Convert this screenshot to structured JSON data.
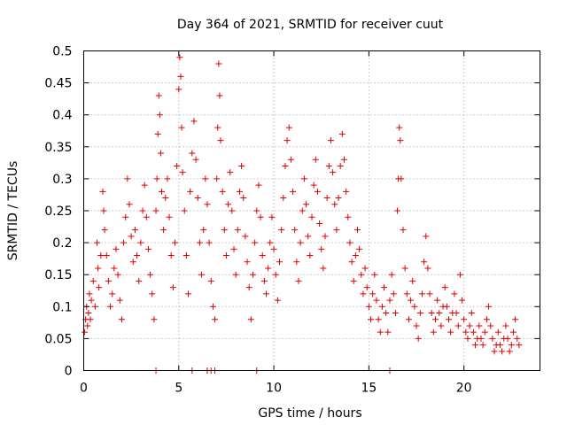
{
  "chart_data": {
    "type": "scatter",
    "title": "Day 364 of 2021, SRMTID for receiver cuut",
    "xlabel": "GPS time / hours",
    "ylabel": "SRMTID / TECUs",
    "xlim": [
      0,
      24
    ],
    "ylim": [
      0,
      0.5
    ],
    "xticks": [
      0,
      5,
      10,
      15,
      20
    ],
    "xtick_labels": [
      "0",
      "5",
      "10",
      "15",
      "20"
    ],
    "yticks": [
      0,
      0.05,
      0.1,
      0.15,
      0.2,
      0.25,
      0.3,
      0.35,
      0.4,
      0.45,
      0.5
    ],
    "ytick_labels": [
      "0",
      "0.05",
      "0.1",
      "0.15",
      "0.2",
      "0.25",
      "0.3",
      "0.35",
      "0.4",
      "0.45",
      "0.5"
    ],
    "grid": true,
    "marker": "+",
    "color": "#e00000",
    "series": [
      {
        "name": "SRMTID",
        "points": [
          [
            0.05,
            0.06
          ],
          [
            0.1,
            0.08
          ],
          [
            0.15,
            0.1
          ],
          [
            0.2,
            0.07
          ],
          [
            0.25,
            0.09
          ],
          [
            0.3,
            0.12
          ],
          [
            0.35,
            0.08
          ],
          [
            0.4,
            0.11
          ],
          [
            0.5,
            0.14
          ],
          [
            0.6,
            0.1
          ],
          [
            0.7,
            0.2
          ],
          [
            0.75,
            0.16
          ],
          [
            0.8,
            0.13
          ],
          [
            0.9,
            0.18
          ],
          [
            1.0,
            0.28
          ],
          [
            1.05,
            0.25
          ],
          [
            1.1,
            0.22
          ],
          [
            1.2,
            0.18
          ],
          [
            1.3,
            0.14
          ],
          [
            1.4,
            0.1
          ],
          [
            1.5,
            0.12
          ],
          [
            1.6,
            0.16
          ],
          [
            1.7,
            0.19
          ],
          [
            1.8,
            0.15
          ],
          [
            1.9,
            0.11
          ],
          [
            2.0,
            0.08
          ],
          [
            2.1,
            0.2
          ],
          [
            2.2,
            0.24
          ],
          [
            2.3,
            0.3
          ],
          [
            2.4,
            0.26
          ],
          [
            2.5,
            0.21
          ],
          [
            2.6,
            0.17
          ],
          [
            2.7,
            0.22
          ],
          [
            2.8,
            0.18
          ],
          [
            2.9,
            0.14
          ],
          [
            3.0,
            0.2
          ],
          [
            3.1,
            0.25
          ],
          [
            3.2,
            0.29
          ],
          [
            3.3,
            0.24
          ],
          [
            3.4,
            0.19
          ],
          [
            3.5,
            0.15
          ],
          [
            3.6,
            0.12
          ],
          [
            3.7,
            0.08
          ],
          [
            3.8,
            0.25
          ],
          [
            3.85,
            0.3
          ],
          [
            3.9,
            0.37
          ],
          [
            3.95,
            0.43
          ],
          [
            4.0,
            0.4
          ],
          [
            4.05,
            0.34
          ],
          [
            4.1,
            0.28
          ],
          [
            4.2,
            0.22
          ],
          [
            4.3,
            0.27
          ],
          [
            4.4,
            0.3
          ],
          [
            4.5,
            0.24
          ],
          [
            4.6,
            0.18
          ],
          [
            4.7,
            0.13
          ],
          [
            4.8,
            0.2
          ],
          [
            4.9,
            0.32
          ],
          [
            5.0,
            0.44
          ],
          [
            5.05,
            0.49
          ],
          [
            5.1,
            0.46
          ],
          [
            5.15,
            0.38
          ],
          [
            5.2,
            0.31
          ],
          [
            5.3,
            0.25
          ],
          [
            5.4,
            0.18
          ],
          [
            5.5,
            0.12
          ],
          [
            5.6,
            0.28
          ],
          [
            5.7,
            0.34
          ],
          [
            5.8,
            0.39
          ],
          [
            5.9,
            0.33
          ],
          [
            6.0,
            0.27
          ],
          [
            6.1,
            0.2
          ],
          [
            6.2,
            0.15
          ],
          [
            6.3,
            0.22
          ],
          [
            6.4,
            0.3
          ],
          [
            6.5,
            0.26
          ],
          [
            6.6,
            0.2
          ],
          [
            6.7,
            0.14
          ],
          [
            6.8,
            0.1
          ],
          [
            6.9,
            0.08
          ],
          [
            7.0,
            0.3
          ],
          [
            7.05,
            0.38
          ],
          [
            7.1,
            0.48
          ],
          [
            7.15,
            0.43
          ],
          [
            7.2,
            0.36
          ],
          [
            7.3,
            0.28
          ],
          [
            7.4,
            0.22
          ],
          [
            7.5,
            0.18
          ],
          [
            7.6,
            0.26
          ],
          [
            7.7,
            0.31
          ],
          [
            7.8,
            0.25
          ],
          [
            7.9,
            0.19
          ],
          [
            8.0,
            0.15
          ],
          [
            8.1,
            0.22
          ],
          [
            8.2,
            0.28
          ],
          [
            8.3,
            0.32
          ],
          [
            8.4,
            0.27
          ],
          [
            8.5,
            0.21
          ],
          [
            8.6,
            0.17
          ],
          [
            8.7,
            0.13
          ],
          [
            8.8,
            0.08
          ],
          [
            8.9,
            0.15
          ],
          [
            9.0,
            0.2
          ],
          [
            9.1,
            0.25
          ],
          [
            9.2,
            0.29
          ],
          [
            9.3,
            0.24
          ],
          [
            9.4,
            0.18
          ],
          [
            9.5,
            0.14
          ],
          [
            9.6,
            0.12
          ],
          [
            9.7,
            0.16
          ],
          [
            9.8,
            0.2
          ],
          [
            9.9,
            0.24
          ],
          [
            10.0,
            0.19
          ],
          [
            10.1,
            0.15
          ],
          [
            10.2,
            0.11
          ],
          [
            10.3,
            0.17
          ],
          [
            10.4,
            0.22
          ],
          [
            10.5,
            0.27
          ],
          [
            10.6,
            0.32
          ],
          [
            10.7,
            0.36
          ],
          [
            10.8,
            0.38
          ],
          [
            10.9,
            0.33
          ],
          [
            11.0,
            0.28
          ],
          [
            11.1,
            0.22
          ],
          [
            11.2,
            0.17
          ],
          [
            11.3,
            0.14
          ],
          [
            11.4,
            0.2
          ],
          [
            11.5,
            0.25
          ],
          [
            11.6,
            0.3
          ],
          [
            11.7,
            0.26
          ],
          [
            11.8,
            0.21
          ],
          [
            11.9,
            0.18
          ],
          [
            12.0,
            0.24
          ],
          [
            12.1,
            0.29
          ],
          [
            12.2,
            0.33
          ],
          [
            12.3,
            0.28
          ],
          [
            12.4,
            0.23
          ],
          [
            12.5,
            0.19
          ],
          [
            12.6,
            0.16
          ],
          [
            12.7,
            0.21
          ],
          [
            12.8,
            0.27
          ],
          [
            12.9,
            0.32
          ],
          [
            13.0,
            0.36
          ],
          [
            13.1,
            0.31
          ],
          [
            13.2,
            0.26
          ],
          [
            13.3,
            0.22
          ],
          [
            13.4,
            0.27
          ],
          [
            13.5,
            0.32
          ],
          [
            13.6,
            0.37
          ],
          [
            13.7,
            0.33
          ],
          [
            13.8,
            0.28
          ],
          [
            13.9,
            0.24
          ],
          [
            14.0,
            0.2
          ],
          [
            14.1,
            0.17
          ],
          [
            14.2,
            0.14
          ],
          [
            14.3,
            0.18
          ],
          [
            14.4,
            0.22
          ],
          [
            14.5,
            0.19
          ],
          [
            14.6,
            0.15
          ],
          [
            14.7,
            0.12
          ],
          [
            14.8,
            0.16
          ],
          [
            14.9,
            0.13
          ],
          [
            15.0,
            0.1
          ],
          [
            15.1,
            0.08
          ],
          [
            15.2,
            0.12
          ],
          [
            15.3,
            0.15
          ],
          [
            15.4,
            0.11
          ],
          [
            15.5,
            0.08
          ],
          [
            15.6,
            0.06
          ],
          [
            15.7,
            0.1
          ],
          [
            15.8,
            0.13
          ],
          [
            15.9,
            0.09
          ],
          [
            16.0,
            0.06
          ],
          [
            16.1,
            0.11
          ],
          [
            16.2,
            0.15
          ],
          [
            16.3,
            0.12
          ],
          [
            16.4,
            0.09
          ],
          [
            16.5,
            0.25
          ],
          [
            16.55,
            0.3
          ],
          [
            16.6,
            0.38
          ],
          [
            16.65,
            0.36
          ],
          [
            16.7,
            0.3
          ],
          [
            16.8,
            0.22
          ],
          [
            16.9,
            0.16
          ],
          [
            17.0,
            0.12
          ],
          [
            17.1,
            0.08
          ],
          [
            17.2,
            0.11
          ],
          [
            17.3,
            0.14
          ],
          [
            17.4,
            0.1
          ],
          [
            17.5,
            0.07
          ],
          [
            17.6,
            0.05
          ],
          [
            17.7,
            0.09
          ],
          [
            17.8,
            0.12
          ],
          [
            17.9,
            0.17
          ],
          [
            18.0,
            0.21
          ],
          [
            18.1,
            0.16
          ],
          [
            18.2,
            0.12
          ],
          [
            18.3,
            0.09
          ],
          [
            18.4,
            0.06
          ],
          [
            18.5,
            0.08
          ],
          [
            18.6,
            0.11
          ],
          [
            18.7,
            0.09
          ],
          [
            18.8,
            0.07
          ],
          [
            18.9,
            0.1
          ],
          [
            19.0,
            0.13
          ],
          [
            19.1,
            0.1
          ],
          [
            19.2,
            0.08
          ],
          [
            19.3,
            0.06
          ],
          [
            19.4,
            0.09
          ],
          [
            19.5,
            0.12
          ],
          [
            19.6,
            0.09
          ],
          [
            19.7,
            0.07
          ],
          [
            19.8,
            0.15
          ],
          [
            19.9,
            0.11
          ],
          [
            20.0,
            0.08
          ],
          [
            20.1,
            0.06
          ],
          [
            20.2,
            0.05
          ],
          [
            20.3,
            0.07
          ],
          [
            20.4,
            0.09
          ],
          [
            20.5,
            0.06
          ],
          [
            20.6,
            0.04
          ],
          [
            20.7,
            0.05
          ],
          [
            20.8,
            0.07
          ],
          [
            20.9,
            0.05
          ],
          [
            21.0,
            0.04
          ],
          [
            21.1,
            0.06
          ],
          [
            21.2,
            0.08
          ],
          [
            21.3,
            0.1
          ],
          [
            21.4,
            0.07
          ],
          [
            21.5,
            0.05
          ],
          [
            21.6,
            0.03
          ],
          [
            21.7,
            0.04
          ],
          [
            21.8,
            0.06
          ],
          [
            21.9,
            0.04
          ],
          [
            22.0,
            0.03
          ],
          [
            22.1,
            0.05
          ],
          [
            22.2,
            0.07
          ],
          [
            22.3,
            0.05
          ],
          [
            22.4,
            0.03
          ],
          [
            22.5,
            0.04
          ],
          [
            22.6,
            0.06
          ],
          [
            22.7,
            0.08
          ],
          [
            22.8,
            0.05
          ],
          [
            22.9,
            0.04
          ],
          [
            3.8,
            0.0
          ],
          [
            5.7,
            0.0
          ],
          [
            6.5,
            0.0
          ],
          [
            6.7,
            0.0
          ],
          [
            6.9,
            0.0
          ],
          [
            9.1,
            0.0
          ],
          [
            16.1,
            0.0
          ]
        ]
      }
    ]
  }
}
